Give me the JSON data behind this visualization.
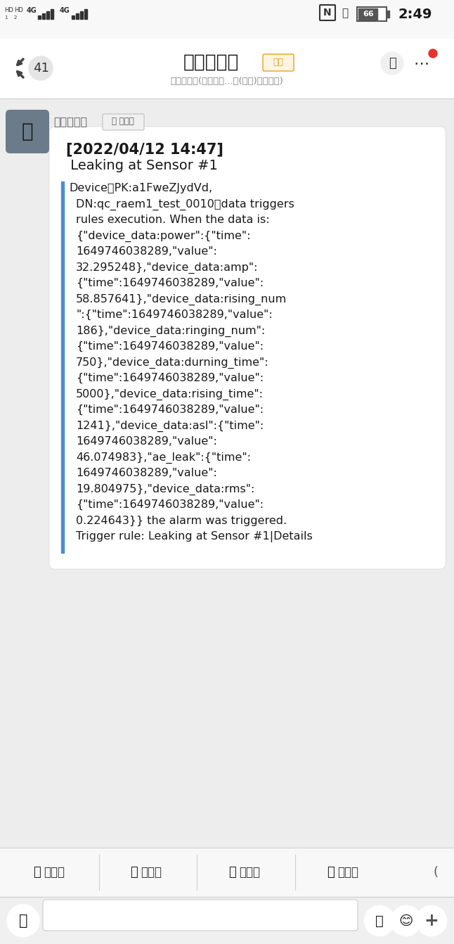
{
  "bg_color": "#f2f2f2",
  "header_bg": "#ffffff",
  "chat_bg": "#ededed",
  "status_bar_text": "2:49",
  "battery_pct": "66",
  "title_text": "技术出口部",
  "title_tag": "部门",
  "subtitle_text": "技术出口部(清诚声发...究(广州)有限公司)",
  "back_count": "41",
  "sender_name": "水龙头漏水",
  "sender_tag": "机器人",
  "message_bubble_bg": "#ffffff",
  "msg_line1": "[2022/04/12 14:47]",
  "msg_line2": " Leaking at Sensor #1",
  "msg_body_lines": [
    "Device（PK:a1FweZJydVd,",
    "  DN:qc_raem1_test_0010）data triggers",
    "  rules execution. When the data is:",
    "  {\"device_data:power\":{\"time\":",
    "  1649746038289,\"value\":",
    "  32.295248},\"device_data:amp\":",
    "  {\"time\":1649746038289,\"value\":",
    "  58.857641},\"device_data:rising_num",
    "  \":{\"time\":1649746038289,\"value\":",
    "  186},\"device_data:ringing_num\":",
    "  {\"time\":1649746038289,\"value\":",
    "  750},\"device_data:durning_time\":",
    "  {\"time\":1649746038289,\"value\":",
    "  5000},\"device_data:rising_time\":",
    "  {\"time\":1649746038289,\"value\":",
    "  1241},\"device_data:asl\":{\"time\":",
    "  1649746038289,\"value\":",
    "  46.074983},\"ae_leak\":{\"time\":",
    "  1649746038289,\"value\":",
    "  19.804975},\"device_data:rms\":",
    "  {\"time\":1649746038289,\"value\":",
    "  0.224643}} the alarm was triggered.",
    "  Trigger rule: Leaking at Sensor #1|Details"
  ],
  "bottom_bar_items": [
    [
      "找文档",
      "#333333"
    ],
    [
      "群日志",
      "#333333"
    ],
    [
      "群签到",
      "#333333"
    ],
    [
      "群公告",
      "#333333"
    ]
  ],
  "divider_color": "#d0d0d0",
  "accent_blue": "#4a8fd4",
  "tag_border": "#e8a020",
  "tag_fill": "#fef5e0",
  "tag_text": "#e8a020",
  "avatar_bg": "#6b7b8a",
  "sender_tag_border": "#c0c0c0",
  "sender_tag_fill": "#f0f0f0"
}
